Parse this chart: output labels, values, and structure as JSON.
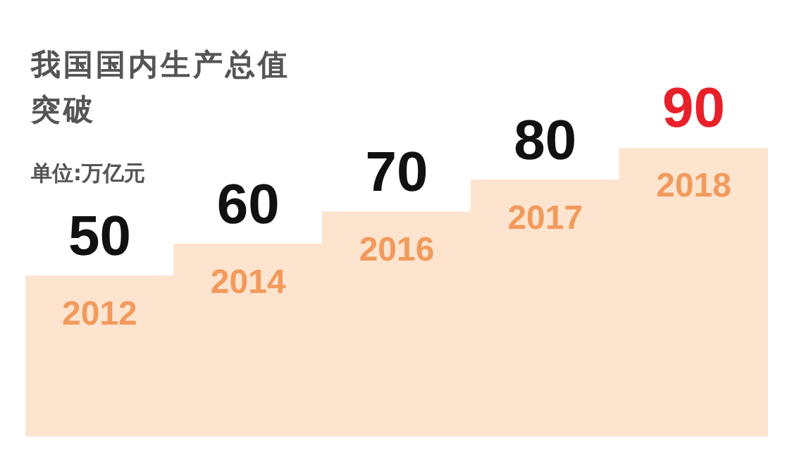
{
  "chart_data": {
    "type": "bar",
    "title": "我国国内生产总值突破",
    "subtitle": "单位:万亿元",
    "categories": [
      "2012",
      "2014",
      "2016",
      "2017",
      "2018"
    ],
    "values": [
      50,
      60,
      70,
      80,
      90
    ],
    "color": "#fde4cf",
    "data_labels": true
  }
}
